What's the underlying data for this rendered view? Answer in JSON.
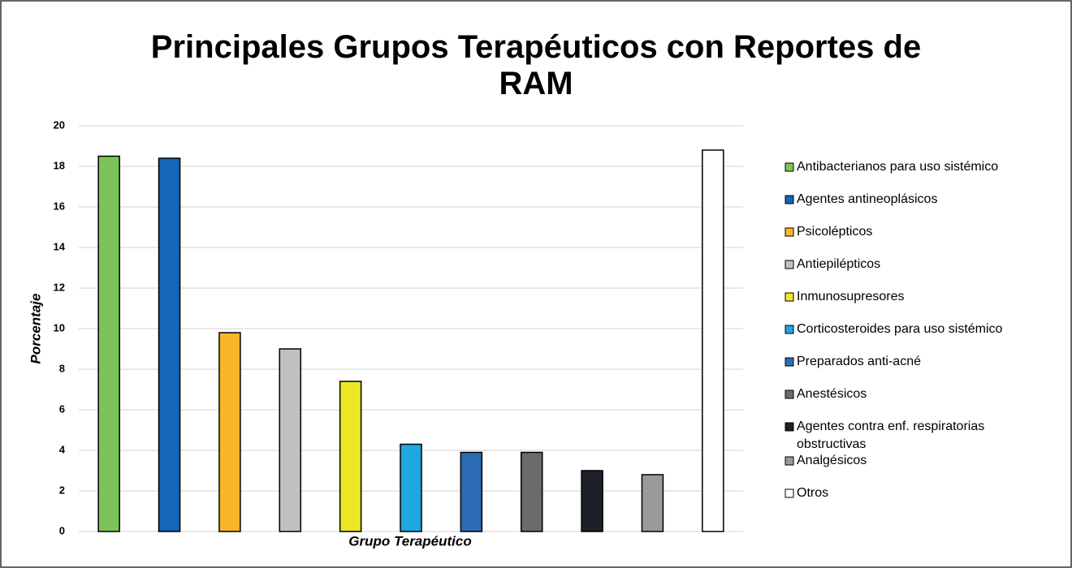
{
  "chart_data": {
    "type": "bar",
    "title": "Principales Grupos Terapéuticos con Reportes de RAM",
    "y_label": "Porcentaje",
    "x_label": "Grupo Terapéutico",
    "categories": [
      "Antibacterianos para uso sistémico",
      "Agentes antineoplásicos",
      "Psicolépticos",
      "Antiepilépticos",
      "Inmunosupresores",
      "Corticosteroides para uso sistémico",
      "Preparados anti-acné",
      "Anestésicos",
      "Agentes contra enf. respiratorias obstructivas",
      "Analgésicos",
      "Otros"
    ],
    "values": [
      18.5,
      18.4,
      9.8,
      9.0,
      7.4,
      4.3,
      3.9,
      3.9,
      3.0,
      2.8,
      18.8
    ],
    "colors": [
      "#7dc35b",
      "#1565b8",
      "#f8b62b",
      "#c0c0c0",
      "#ece824",
      "#1fa7e0",
      "#2b6cb5",
      "#6b6b6b",
      "#1c2028",
      "#9a9a9a",
      "#ffffff"
    ],
    "ylim": [
      0,
      20
    ],
    "yticks": [
      0,
      2,
      4,
      6,
      8,
      10,
      12,
      14,
      16,
      18,
      20
    ],
    "grid": true,
    "legend": "right"
  }
}
